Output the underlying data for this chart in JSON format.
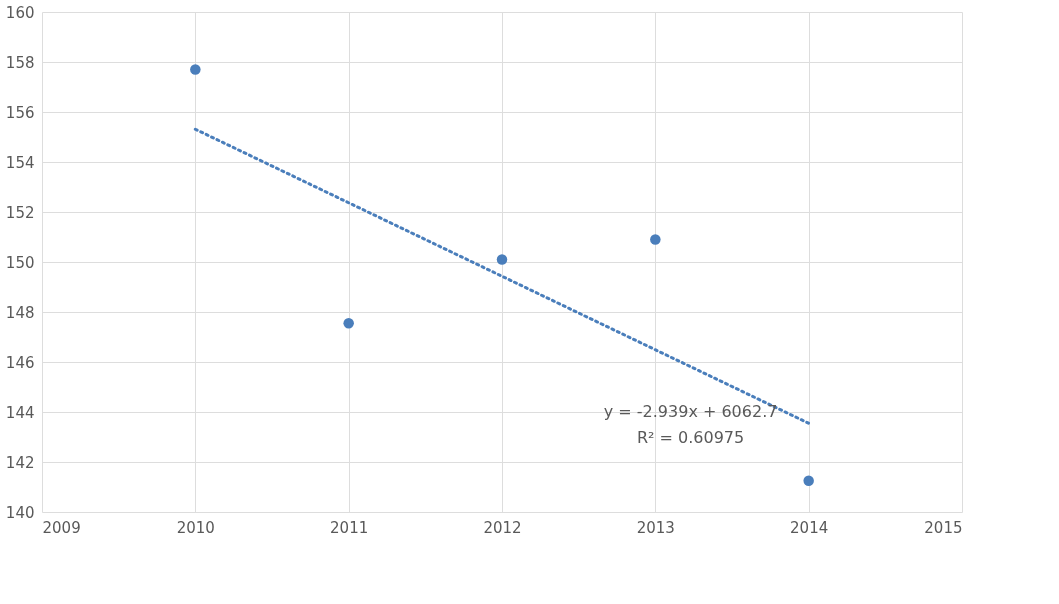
{
  "chart_data": {
    "type": "scatter",
    "x": [
      2010,
      2011,
      2012,
      2013,
      2014
    ],
    "series": [
      {
        "color": "#4a7ebb",
        "values": [
          157.7,
          147.55,
          150.1,
          150.9,
          141.25
        ],
        "marker": "circle"
      },
      {
        "type": "line",
        "color": "#4a7ebb",
        "x": [
          2010,
          2014
        ],
        "values": [
          155.31,
          143.55
        ],
        "line_style": "dotted"
      }
    ],
    "xlim": [
      2009,
      2015
    ],
    "xticks": [
      2009,
      2010,
      2011,
      2012,
      2013,
      2014,
      2015
    ],
    "ylim": [
      140,
      160
    ],
    "yticks": [
      140,
      142,
      144,
      146,
      148,
      150,
      152,
      154,
      156,
      158,
      160
    ],
    "grid": true,
    "annotations": [
      "y = -2.939x + 6062.7",
      "R² = 0.60975"
    ]
  }
}
